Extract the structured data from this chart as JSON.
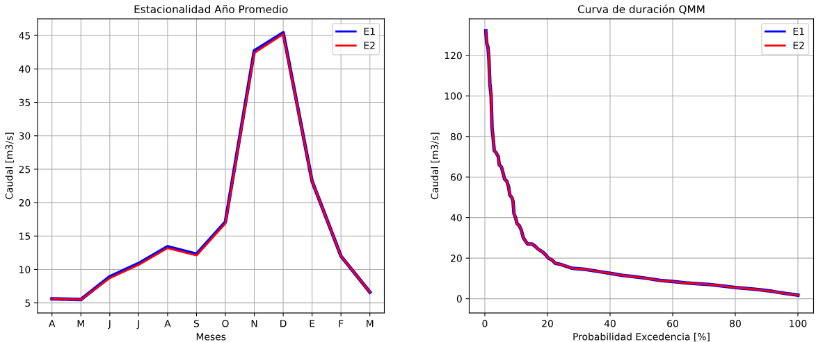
{
  "chart_data": [
    {
      "type": "line",
      "title": "Estacionalidad Año Promedio",
      "xlabel": "Meses",
      "ylabel": "Caudal [m3/s]",
      "categories": [
        "A",
        "M",
        "J",
        "J",
        "A",
        "S",
        "O",
        "N",
        "D",
        "E",
        "F",
        "M"
      ],
      "series": [
        {
          "name": "E1",
          "color": "#0000ff",
          "values": [
            5.6,
            5.5,
            8.9,
            10.9,
            13.4,
            12.3,
            17.1,
            42.7,
            45.4,
            23.2,
            12.0,
            6.6
          ]
        },
        {
          "name": "E2",
          "color": "#ff0000",
          "values": [
            5.6,
            5.5,
            8.7,
            10.7,
            13.2,
            12.1,
            16.9,
            42.4,
            45.2,
            23.2,
            12.0,
            6.6
          ]
        }
      ],
      "ylim": [
        3.5,
        47.5
      ],
      "yticks": [
        5,
        10,
        15,
        20,
        25,
        30,
        35,
        40,
        45
      ],
      "grid": true,
      "legend": "top right",
      "marker": "none",
      "line_style": "solid"
    },
    {
      "type": "line",
      "title": "Curva de duración QMM",
      "xlabel": "Probabilidad Excedencia [%]",
      "ylabel": "Caudal [m3/s]",
      "series": [
        {
          "name": "E1",
          "color": "#0000ff",
          "x": [
            0.3,
            0.6,
            1.0,
            1.3,
            1.6,
            2.0,
            2.3,
            2.6,
            3.0,
            3.6,
            4.3,
            4.6,
            5.3,
            5.8,
            6.3,
            7.0,
            7.6,
            8.0,
            8.6,
            9.0,
            9.3,
            9.8,
            10.3,
            11.0,
            11.6,
            12.3,
            13.6,
            15.0,
            16.0,
            17.0,
            18.5,
            19.5,
            20.3,
            21.5,
            22.5,
            24,
            26,
            28,
            32,
            36,
            40,
            44,
            48,
            52,
            56,
            60,
            64,
            68,
            72,
            76,
            80,
            84,
            88,
            92,
            96,
            100
          ],
          "values": [
            132,
            126,
            124,
            118,
            106,
            100,
            84,
            80,
            73,
            72,
            70,
            66,
            65,
            62,
            59,
            58,
            55,
            51,
            50,
            48,
            42,
            40,
            37,
            36,
            34,
            30,
            27,
            27,
            26,
            24.5,
            23,
            21.5,
            20,
            19,
            17.5,
            17,
            16,
            15,
            14.5,
            13.5,
            12.5,
            11.5,
            10.8,
            10,
            9,
            8.5,
            7.8,
            7.4,
            7,
            6.3,
            5.5,
            5,
            4.4,
            3.6,
            2.6,
            1.8
          ]
        },
        {
          "name": "E2",
          "color": "#ff0000",
          "x": [
            0.3,
            0.6,
            1.0,
            1.3,
            1.6,
            2.0,
            2.3,
            2.6,
            3.0,
            3.6,
            4.3,
            4.6,
            5.3,
            5.8,
            6.3,
            7.0,
            7.6,
            8.0,
            8.6,
            9.0,
            9.3,
            9.8,
            10.3,
            11.0,
            11.6,
            12.3,
            13.6,
            15.0,
            16.0,
            17.0,
            18.5,
            19.5,
            20.3,
            21.5,
            22.5,
            24,
            26,
            28,
            32,
            36,
            40,
            44,
            48,
            52,
            56,
            60,
            64,
            68,
            72,
            76,
            80,
            84,
            88,
            92,
            96,
            100
          ],
          "values": [
            132,
            126,
            124,
            118,
            106,
            100,
            84,
            80,
            73,
            72,
            70,
            66,
            65,
            62,
            59,
            58,
            55,
            51,
            50,
            48,
            42,
            40,
            37,
            36,
            34,
            30,
            27,
            27,
            26,
            24.5,
            23,
            21.5,
            20,
            19,
            17.5,
            17,
            16,
            15,
            14.5,
            13.5,
            12.5,
            11.5,
            10.8,
            10,
            9,
            8.5,
            7.8,
            7.4,
            7,
            6.3,
            5.5,
            5,
            4.4,
            3.6,
            2.6,
            1.8
          ]
        }
      ],
      "xlim": [
        -5,
        105
      ],
      "xticks": [
        0,
        20,
        40,
        60,
        80,
        100
      ],
      "ylim": [
        -7,
        138
      ],
      "yticks": [
        0,
        20,
        40,
        60,
        80,
        100,
        120
      ],
      "grid": true,
      "legend": "top right",
      "marker": "none",
      "line_style": "solid"
    }
  ]
}
